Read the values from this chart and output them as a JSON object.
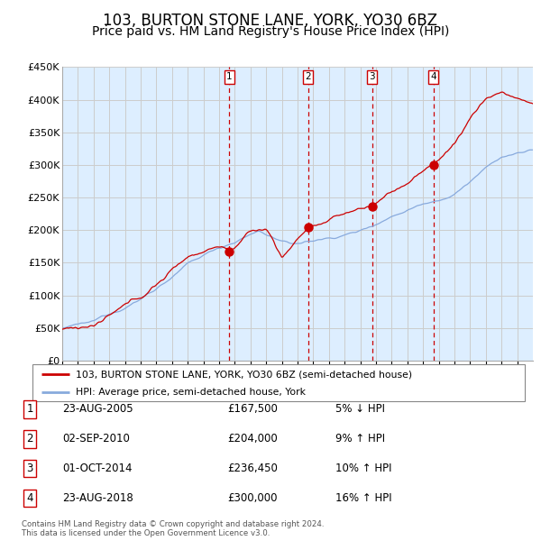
{
  "title": "103, BURTON STONE LANE, YORK, YO30 6BZ",
  "subtitle": "Price paid vs. HM Land Registry's House Price Index (HPI)",
  "ylim": [
    0,
    450000
  ],
  "yticks": [
    0,
    50000,
    100000,
    150000,
    200000,
    250000,
    300000,
    350000,
    400000,
    450000
  ],
  "ytick_labels": [
    "£0",
    "£50K",
    "£100K",
    "£150K",
    "£200K",
    "£250K",
    "£300K",
    "£350K",
    "£400K",
    "£450K"
  ],
  "background_color": "#ffffff",
  "plot_bg_color": "#ddeeff",
  "grid_color": "#cccccc",
  "sale_line_color": "#cc0000",
  "hpi_line_color": "#88aadd",
  "vline_color": "#cc0000",
  "title_fontsize": 12,
  "subtitle_fontsize": 10,
  "legend_label_sale": "103, BURTON STONE LANE, YORK, YO30 6BZ (semi-detached house)",
  "legend_label_hpi": "HPI: Average price, semi-detached house, York",
  "sales": [
    {
      "label": "1",
      "date_num": 2005.65,
      "price": 167500,
      "pct": "5%",
      "dir": "↓",
      "date_str": "23-AUG-2005"
    },
    {
      "label": "2",
      "date_num": 2010.67,
      "price": 204000,
      "pct": "9%",
      "dir": "↑",
      "date_str": "02-SEP-2010"
    },
    {
      "label": "3",
      "date_num": 2014.75,
      "price": 236450,
      "pct": "10%",
      "dir": "↑",
      "date_str": "01-OCT-2014"
    },
    {
      "label": "4",
      "date_num": 2018.65,
      "price": 300000,
      "pct": "16%",
      "dir": "↑",
      "date_str": "23-AUG-2018"
    }
  ],
  "footer_line1": "Contains HM Land Registry data © Crown copyright and database right 2024.",
  "footer_line2": "This data is licensed under the Open Government Licence v3.0."
}
